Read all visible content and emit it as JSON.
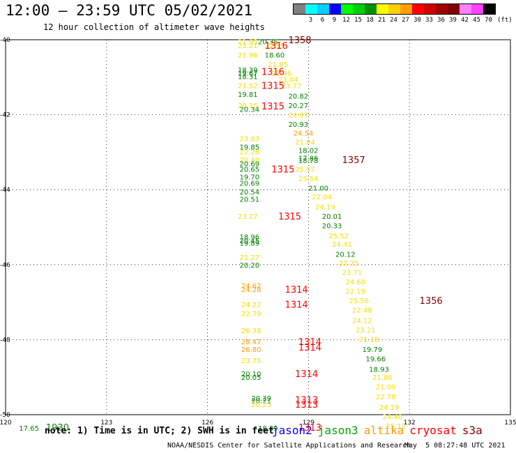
{
  "header": {
    "title": "12:00 – 23:59 UTC 05/02/2021",
    "subtitle": "12 hour collection of altimeter wave heights"
  },
  "scale": {
    "unit": "(ft)",
    "bins": [
      {
        "label": "",
        "color": "#808080"
      },
      {
        "label": "3",
        "color": "#00ffff"
      },
      {
        "label": "6",
        "color": "#00d0ff"
      },
      {
        "label": "9",
        "color": "#0000ff"
      },
      {
        "label": "12",
        "color": "#00ff00"
      },
      {
        "label": "15",
        "color": "#00d000"
      },
      {
        "label": "18",
        "color": "#009000"
      },
      {
        "label": "21",
        "color": "#ffff00"
      },
      {
        "label": "24",
        "color": "#ffd000"
      },
      {
        "label": "27",
        "color": "#ffa000"
      },
      {
        "label": "30",
        "color": "#ff0000"
      },
      {
        "label": "33",
        "color": "#d00000"
      },
      {
        "label": "36",
        "color": "#a00000"
      },
      {
        "label": "39",
        "color": "#800000"
      },
      {
        "label": "42",
        "color": "#ff80ff"
      },
      {
        "label": "45",
        "color": "#ff40ff"
      },
      {
        "label": "70",
        "color": "#000000"
      }
    ]
  },
  "chart_data": {
    "type": "scatter",
    "title": "12:00 – 23:59 UTC 05/02/2021",
    "subtitle": "12 hour collection of altimeter wave heights",
    "xlim": [
      120,
      135
    ],
    "ylim": [
      -50,
      -40
    ],
    "x_ticks": [
      120,
      123,
      126,
      129,
      132,
      135
    ],
    "y_ticks": [
      -40,
      -42,
      -44,
      -46,
      -48,
      -50
    ],
    "x_tick_labels": [
      "120",
      "123",
      "126",
      "129",
      "132",
      "135"
    ],
    "y_tick_labels": [
      "-40",
      "-42",
      "-44",
      "-46",
      "-48",
      "-50"
    ],
    "grid": true,
    "colors": {
      "green": "#008000",
      "yellow": "#f0e000",
      "orange": "#ff9900",
      "red": "#ff0000",
      "darkred": "#800000"
    },
    "observations": [
      {
        "lon": 127.5,
        "lat": -40.05,
        "swh": "20.35",
        "color": "green"
      },
      {
        "lon": 126.9,
        "lat": -40.05,
        "swh": "21.95",
        "color": "yellow"
      },
      {
        "lon": 126.9,
        "lat": -40.15,
        "swh": "23.21",
        "color": "yellow"
      },
      {
        "lon": 127.7,
        "lat": -40.15,
        "swh": "22.55",
        "color": "yellow"
      },
      {
        "lon": 126.9,
        "lat": -40.4,
        "swh": "21.96",
        "color": "yellow"
      },
      {
        "lon": 127.7,
        "lat": -40.4,
        "swh": "18.60",
        "color": "green"
      },
      {
        "lon": 127.8,
        "lat": -40.65,
        "swh": "21.85",
        "color": "yellow"
      },
      {
        "lon": 126.9,
        "lat": -40.8,
        "swh": "18.39",
        "color": "green"
      },
      {
        "lon": 126.9,
        "lat": -40.88,
        "swh": "19.67",
        "color": "green"
      },
      {
        "lon": 126.9,
        "lat": -40.98,
        "swh": "18.31",
        "color": "green"
      },
      {
        "lon": 127.9,
        "lat": -40.88,
        "swh": "21.96",
        "color": "yellow"
      },
      {
        "lon": 128.1,
        "lat": -41.05,
        "swh": "23.04",
        "color": "yellow"
      },
      {
        "lon": 126.9,
        "lat": -41.22,
        "swh": "21.52",
        "color": "yellow"
      },
      {
        "lon": 128.2,
        "lat": -41.22,
        "swh": "23.77",
        "color": "yellow"
      },
      {
        "lon": 126.9,
        "lat": -41.45,
        "swh": "19.81",
        "color": "green"
      },
      {
        "lon": 128.4,
        "lat": -41.5,
        "swh": "20.82",
        "color": "green"
      },
      {
        "lon": 126.9,
        "lat": -41.75,
        "swh": "20.15",
        "color": "yellow"
      },
      {
        "lon": 126.95,
        "lat": -41.85,
        "swh": "20.34",
        "color": "green"
      },
      {
        "lon": 128.4,
        "lat": -41.75,
        "swh": "20.27",
        "color": "green"
      },
      {
        "lon": 128.4,
        "lat": -42.0,
        "swh": "20.07",
        "color": "yellow"
      },
      {
        "lon": 128.4,
        "lat": -42.25,
        "swh": "20.93",
        "color": "green"
      },
      {
        "lon": 128.55,
        "lat": -42.48,
        "swh": "24.54",
        "color": "orange"
      },
      {
        "lon": 128.6,
        "lat": -42.72,
        "swh": "21.84",
        "color": "yellow"
      },
      {
        "lon": 126.95,
        "lat": -42.63,
        "swh": "23.83",
        "color": "yellow"
      },
      {
        "lon": 126.95,
        "lat": -42.85,
        "swh": "19.85",
        "color": "green"
      },
      {
        "lon": 126.95,
        "lat": -42.98,
        "swh": "22.28",
        "color": "yellow"
      },
      {
        "lon": 128.7,
        "lat": -42.95,
        "swh": "18.02",
        "color": "green"
      },
      {
        "lon": 128.7,
        "lat": -43.15,
        "swh": "17.86",
        "color": "green"
      },
      {
        "lon": 128.7,
        "lat": -43.22,
        "swh": "18.78",
        "color": "green"
      },
      {
        "lon": 126.95,
        "lat": -43.2,
        "swh": "20.40",
        "color": "yellow"
      },
      {
        "lon": 126.95,
        "lat": -43.3,
        "swh": "20.69",
        "color": "green"
      },
      {
        "lon": 126.95,
        "lat": -43.45,
        "swh": "20.65",
        "color": "green"
      },
      {
        "lon": 128.6,
        "lat": -43.45,
        "swh": "25.07",
        "color": "yellow"
      },
      {
        "lon": 126.95,
        "lat": -43.65,
        "swh": "19.70",
        "color": "green"
      },
      {
        "lon": 128.7,
        "lat": -43.7,
        "swh": "25.54",
        "color": "yellow"
      },
      {
        "lon": 126.95,
        "lat": -43.82,
        "swh": "20.69",
        "color": "green"
      },
      {
        "lon": 129.0,
        "lat": -43.95,
        "swh": "21.00",
        "color": "green"
      },
      {
        "lon": 126.95,
        "lat": -44.05,
        "swh": "20.54",
        "color": "green"
      },
      {
        "lon": 129.1,
        "lat": -44.18,
        "swh": "22.04",
        "color": "yellow"
      },
      {
        "lon": 126.95,
        "lat": -44.25,
        "swh": "20.51",
        "color": "green"
      },
      {
        "lon": 129.2,
        "lat": -44.45,
        "swh": "24.19",
        "color": "yellow"
      },
      {
        "lon": 126.9,
        "lat": -44.7,
        "swh": "23.27",
        "color": "yellow"
      },
      {
        "lon": 129.4,
        "lat": -44.7,
        "swh": "20.01",
        "color": "green"
      },
      {
        "lon": 129.4,
        "lat": -44.95,
        "swh": "20.33",
        "color": "green"
      },
      {
        "lon": 129.6,
        "lat": -45.22,
        "swh": "25.52",
        "color": "yellow"
      },
      {
        "lon": 126.95,
        "lat": -45.25,
        "swh": "18.96",
        "color": "green"
      },
      {
        "lon": 126.95,
        "lat": -45.35,
        "swh": "20.45",
        "color": "green"
      },
      {
        "lon": 126.95,
        "lat": -45.42,
        "swh": "19.89",
        "color": "green"
      },
      {
        "lon": 129.7,
        "lat": -45.45,
        "swh": "24.41",
        "color": "yellow"
      },
      {
        "lon": 129.8,
        "lat": -45.72,
        "swh": "20.12",
        "color": "green"
      },
      {
        "lon": 126.95,
        "lat": -45.8,
        "swh": "21.27",
        "color": "yellow"
      },
      {
        "lon": 129.9,
        "lat": -45.95,
        "swh": "22.35",
        "color": "yellow"
      },
      {
        "lon": 126.95,
        "lat": -46.0,
        "swh": "20.20",
        "color": "green"
      },
      {
        "lon": 130.0,
        "lat": -46.2,
        "swh": "23.71",
        "color": "yellow"
      },
      {
        "lon": 130.1,
        "lat": -46.45,
        "swh": "24.60",
        "color": "yellow"
      },
      {
        "lon": 127.0,
        "lat": -46.55,
        "swh": "24.62",
        "color": "orange"
      },
      {
        "lon": 127.0,
        "lat": -46.65,
        "swh": "24.28",
        "color": "orange"
      },
      {
        "lon": 130.1,
        "lat": -46.7,
        "swh": "22.19",
        "color": "yellow"
      },
      {
        "lon": 130.2,
        "lat": -46.95,
        "swh": "25.56",
        "color": "yellow"
      },
      {
        "lon": 127.0,
        "lat": -47.05,
        "swh": "24.22",
        "color": "yellow"
      },
      {
        "lon": 130.3,
        "lat": -47.2,
        "swh": "22.48",
        "color": "yellow"
      },
      {
        "lon": 127.0,
        "lat": -47.3,
        "swh": "22.79",
        "color": "yellow"
      },
      {
        "lon": 130.3,
        "lat": -47.48,
        "swh": "24.12",
        "color": "yellow"
      },
      {
        "lon": 130.4,
        "lat": -47.73,
        "swh": "23.21",
        "color": "yellow"
      },
      {
        "lon": 127.0,
        "lat": -47.75,
        "swh": "26.38",
        "color": "yellow"
      },
      {
        "lon": 130.5,
        "lat": -47.98,
        "swh": "21.18",
        "color": "yellow"
      },
      {
        "lon": 127.0,
        "lat": -48.05,
        "swh": "28.47",
        "color": "orange"
      },
      {
        "lon": 127.0,
        "lat": -48.25,
        "swh": "26.80",
        "color": "orange"
      },
      {
        "lon": 130.6,
        "lat": -48.25,
        "swh": "19.79",
        "color": "green"
      },
      {
        "lon": 130.7,
        "lat": -48.5,
        "swh": "19.66",
        "color": "green"
      },
      {
        "lon": 127.0,
        "lat": -48.55,
        "swh": "23.75",
        "color": "yellow"
      },
      {
        "lon": 130.8,
        "lat": -48.78,
        "swh": "18.93",
        "color": "green"
      },
      {
        "lon": 127.0,
        "lat": -48.9,
        "swh": "20.10",
        "color": "green"
      },
      {
        "lon": 127.0,
        "lat": -49.0,
        "swh": "20.05",
        "color": "green"
      },
      {
        "lon": 130.9,
        "lat": -49.0,
        "swh": "21.86",
        "color": "yellow"
      },
      {
        "lon": 131.0,
        "lat": -49.25,
        "swh": "21.09",
        "color": "yellow"
      },
      {
        "lon": 127.3,
        "lat": -49.55,
        "swh": "20.39",
        "color": "green"
      },
      {
        "lon": 127.3,
        "lat": -49.62,
        "swh": "20.21",
        "color": "green"
      },
      {
        "lon": 131.0,
        "lat": -49.52,
        "swh": "22.78",
        "color": "yellow"
      },
      {
        "lon": 127.3,
        "lat": -49.72,
        "swh": "20.25",
        "color": "yellow"
      },
      {
        "lon": 131.1,
        "lat": -49.8,
        "swh": "24.19",
        "color": "yellow"
      },
      {
        "lon": 131.2,
        "lat": -50.05,
        "swh": "24.40",
        "color": "yellow"
      },
      {
        "lon": 131.3,
        "lat": -50.3,
        "swh": "25.12",
        "color": "yellow"
      },
      {
        "lon": 127.5,
        "lat": -50.35,
        "swh": "18.39",
        "color": "green"
      },
      {
        "lon": 120.4,
        "lat": -50.35,
        "swh": "17.65",
        "color": "green"
      }
    ],
    "time_labels": [
      {
        "lon": 128.4,
        "lat": -40.0,
        "text": "1358",
        "color": "darkred"
      },
      {
        "lon": 127.7,
        "lat": -40.15,
        "text": "1316",
        "color": "red"
      },
      {
        "lon": 127.6,
        "lat": -40.85,
        "text": "1316",
        "color": "red"
      },
      {
        "lon": 127.6,
        "lat": -41.22,
        "text": "1315",
        "color": "red"
      },
      {
        "lon": 127.6,
        "lat": -41.77,
        "text": "1315",
        "color": "red"
      },
      {
        "lon": 130.0,
        "lat": -43.2,
        "text": "1357",
        "color": "darkred"
      },
      {
        "lon": 127.9,
        "lat": -43.45,
        "text": "1315",
        "color": "red"
      },
      {
        "lon": 128.1,
        "lat": -44.7,
        "text": "1315",
        "color": "red"
      },
      {
        "lon": 128.3,
        "lat": -46.65,
        "text": "1314",
        "color": "red"
      },
      {
        "lon": 128.3,
        "lat": -47.05,
        "text": "1314",
        "color": "red"
      },
      {
        "lon": 132.3,
        "lat": -46.95,
        "text": "1356",
        "color": "darkred"
      },
      {
        "lon": 128.7,
        "lat": -48.05,
        "text": "1314",
        "color": "red"
      },
      {
        "lon": 128.7,
        "lat": -48.2,
        "text": "1314",
        "color": "red"
      },
      {
        "lon": 128.6,
        "lat": -48.9,
        "text": "1314",
        "color": "red"
      },
      {
        "lon": 128.6,
        "lat": -49.6,
        "text": "1313",
        "color": "red"
      },
      {
        "lon": 128.6,
        "lat": -49.72,
        "text": "1313",
        "color": "red"
      },
      {
        "lon": 128.7,
        "lat": -50.33,
        "text": "1313",
        "color": "red"
      },
      {
        "lon": 121.2,
        "lat": -50.33,
        "text": "1930",
        "color": "green"
      }
    ]
  },
  "footer": {
    "note": "note: 1) Time is in UTC; 2) SWH is in feet",
    "legend": [
      {
        "name": "jason2",
        "color": "#0000ff"
      },
      {
        "name": "jason3",
        "color": "#00a000"
      },
      {
        "name": "altika",
        "color": "#ff9900"
      },
      {
        "name": "cryosat",
        "color": "#ff0000"
      },
      {
        "name": "s3a",
        "color": "#800000"
      }
    ],
    "credit": "NOAA/NESDIS Center for Satellite Applications and Research",
    "timestamp": "May  5 08:27:48 UTC 2021"
  }
}
